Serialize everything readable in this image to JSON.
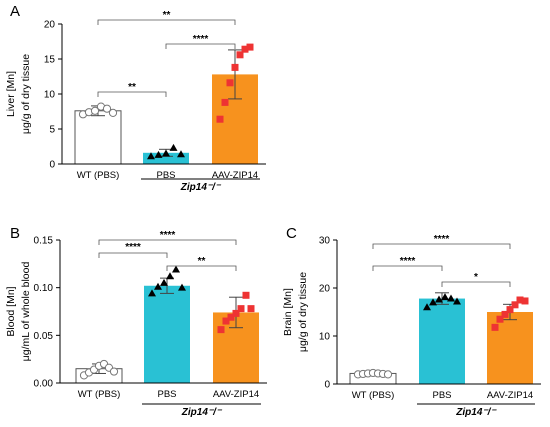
{
  "chart_data": [
    {
      "panel": "A",
      "type": "bar",
      "ylabel": [
        "Liver [Mn]",
        "μg/g of dry tissue"
      ],
      "yticks": [
        "0",
        "5",
        "10",
        "15",
        "20"
      ],
      "ylim": [
        0,
        20
      ],
      "categories": [
        "WT (PBS)",
        "PBS",
        "AAV-ZIP14"
      ],
      "group_label": "Zip14⁻/⁻",
      "values": [
        7.6,
        1.6,
        12.8
      ],
      "errors": [
        0.7,
        0.5,
        3.5
      ],
      "points": [
        [
          7.1,
          7.4,
          7.6,
          8.2,
          7.9,
          7.3
        ],
        [
          1.1,
          1.3,
          1.5,
          2.3,
          1.4
        ],
        [
          6.4,
          8.8,
          11.6,
          13.8,
          15.6,
          16.4,
          16.7
        ]
      ],
      "colors": [
        "#ffffff",
        "#29c1d4",
        "#f7921e"
      ],
      "marker_colors": [
        "#777777",
        "#000000",
        "#ee3333"
      ],
      "significance": [
        {
          "from": 0,
          "to": 1,
          "label": "**"
        },
        {
          "from": 1,
          "to": 2,
          "label": "****"
        },
        {
          "from": 0,
          "to": 2,
          "label": "**"
        }
      ]
    },
    {
      "panel": "B",
      "type": "bar",
      "ylabel": [
        "Blood [Mn]",
        "μg/mL of whole blood"
      ],
      "yticks": [
        "0.00",
        "0.05",
        "0.10",
        "0.15"
      ],
      "ylim": [
        0,
        0.15
      ],
      "categories": [
        "WT (PBS)",
        "PBS",
        "AAV-ZIP14"
      ],
      "group_label": "Zip14⁻/⁻",
      "values": [
        0.015,
        0.102,
        0.074
      ],
      "errors": [
        0.005,
        0.008,
        0.016
      ],
      "points": [
        [
          0.008,
          0.011,
          0.014,
          0.018,
          0.02,
          0.016,
          0.012
        ],
        [
          0.094,
          0.101,
          0.105,
          0.112,
          0.119,
          0.1
        ],
        [
          0.056,
          0.065,
          0.069,
          0.073,
          0.078,
          0.092,
          0.078
        ]
      ],
      "colors": [
        "#ffffff",
        "#29c1d4",
        "#f7921e"
      ],
      "marker_colors": [
        "#777777",
        "#000000",
        "#ee3333"
      ],
      "significance": [
        {
          "from": 0,
          "to": 1,
          "label": "****"
        },
        {
          "from": 1,
          "to": 2,
          "label": "**"
        },
        {
          "from": 0,
          "to": 2,
          "label": "****"
        }
      ]
    },
    {
      "panel": "C",
      "type": "bar",
      "ylabel": [
        "Brain [Mn]",
        "μg/g of dry tissue"
      ],
      "yticks": [
        "0",
        "10",
        "20",
        "30"
      ],
      "ylim": [
        0,
        30
      ],
      "categories": [
        "WT (PBS)",
        "PBS",
        "AAV-ZIP14"
      ],
      "group_label": "Zip14⁻/⁻",
      "values": [
        2.2,
        17.8,
        15.0
      ],
      "errors": [
        0.3,
        1.2,
        1.6
      ],
      "points": [
        [
          2.0,
          2.1,
          2.2,
          2.3,
          2.2,
          2.1,
          2.0
        ],
        [
          16.0,
          17.0,
          17.6,
          18.1,
          17.8,
          17.2
        ],
        [
          11.8,
          13.5,
          14.5,
          15.5,
          16.5,
          17.5,
          17.3
        ]
      ],
      "colors": [
        "#ffffff",
        "#29c1d4",
        "#f7921e"
      ],
      "marker_colors": [
        "#777777",
        "#000000",
        "#ee3333"
      ],
      "significance": [
        {
          "from": 0,
          "to": 1,
          "label": "****"
        },
        {
          "from": 1,
          "to": 2,
          "label": "*"
        },
        {
          "from": 0,
          "to": 2,
          "label": "****"
        }
      ]
    }
  ]
}
